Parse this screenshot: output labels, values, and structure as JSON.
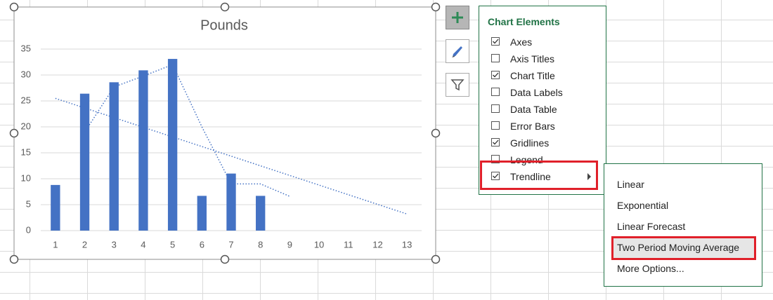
{
  "chart_data": {
    "type": "bar",
    "title": "Pounds",
    "categories": [
      "1",
      "2",
      "3",
      "4",
      "5",
      "6",
      "7",
      "8",
      "9",
      "10",
      "11",
      "12",
      "13"
    ],
    "values": [
      8.8,
      26.4,
      28.6,
      30.9,
      33.1,
      6.7,
      11,
      6.7,
      null,
      null,
      null,
      null,
      null
    ],
    "color": "#4472c4",
    "ylim": [
      0,
      35
    ],
    "yticks": [
      0,
      5,
      10,
      15,
      20,
      25,
      30,
      35
    ],
    "grid": true,
    "trendlines": [
      {
        "x": [
          1,
          13
        ],
        "values": [
          25.5,
          3.2
        ],
        "color": "#4472c4"
      },
      {
        "x": [
          2,
          3,
          4,
          5,
          6,
          7,
          8,
          9
        ],
        "values": [
          19,
          27.7,
          29.8,
          32,
          20,
          9,
          9,
          6.6
        ],
        "color": "#4472c4"
      }
    ]
  },
  "chart_elements": {
    "title": "Chart Elements",
    "items": [
      {
        "label": "Axes",
        "checked": true
      },
      {
        "label": "Axis Titles",
        "checked": false
      },
      {
        "label": "Chart Title",
        "checked": true
      },
      {
        "label": "Data Labels",
        "checked": false
      },
      {
        "label": "Data Table",
        "checked": false
      },
      {
        "label": "Error Bars",
        "checked": false
      },
      {
        "label": "Gridlines",
        "checked": true
      },
      {
        "label": "Legend",
        "checked": false
      },
      {
        "label": "Trendline",
        "checked": true
      }
    ],
    "selected": 8
  },
  "trendline_menu": {
    "items": [
      "Linear",
      "Exponential",
      "Linear Forecast",
      "Two Period Moving Average",
      "More Options..."
    ],
    "highlighted": 3
  }
}
